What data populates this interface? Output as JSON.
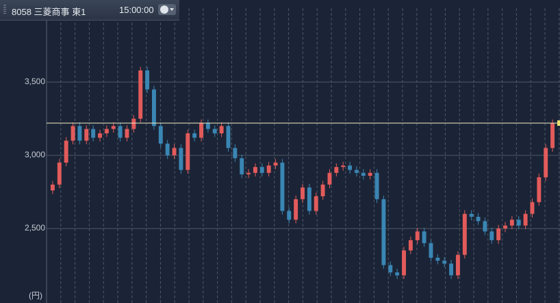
{
  "header": {
    "symbol": "8058 三菱商事 東1",
    "time": "15:00:00"
  },
  "chart_data": {
    "type": "candlestick",
    "unit_label": "(円)",
    "ylim": [
      1991,
      4061
    ],
    "yticks": [
      {
        "value": 2500,
        "label": "2,500"
      },
      {
        "value": 3000,
        "label": "3,000"
      },
      {
        "value": 3500,
        "label": "3,500"
      }
    ],
    "grid": true,
    "up_color": "#e25b5b",
    "down_color": "#3a86b4",
    "price_line": 3220,
    "price_line_color": "#f4f1c8",
    "open": [
      2760,
      2800,
      2950,
      3100,
      3200,
      3100,
      3180,
      3120,
      3150,
      3180,
      3200,
      3120,
      3180,
      3250,
      3580,
      3450,
      3200,
      3080,
      3000,
      3050,
      2900,
      3150,
      3120,
      3220,
      3180,
      3150,
      3200,
      3050,
      2980,
      2870,
      2880,
      2920,
      2880,
      2930,
      2950,
      2620,
      2560,
      2700,
      2780,
      2620,
      2720,
      2800,
      2880,
      2920,
      2930,
      2900,
      2880,
      2860,
      2880,
      2700,
      2250,
      2200,
      2180,
      2350,
      2420,
      2480,
      2400,
      2300,
      2280,
      2260,
      2180,
      2320,
      2600,
      2580,
      2550,
      2480,
      2420,
      2500,
      2520,
      2560,
      2520,
      2600,
      2680,
      2850,
      3050
    ],
    "high": [
      2825,
      2975,
      3125,
      3225,
      3225,
      3205,
      3205,
      3175,
      3205,
      3225,
      3225,
      3205,
      3275,
      3605,
      3605,
      3475,
      3225,
      3105,
      3075,
      3075,
      3175,
      3175,
      3245,
      3245,
      3205,
      3225,
      3225,
      3075,
      3005,
      2905,
      2945,
      2945,
      2955,
      2975,
      2975,
      2645,
      2725,
      2805,
      2805,
      2745,
      2825,
      2905,
      2945,
      2955,
      2955,
      2925,
      2905,
      2905,
      2905,
      2725,
      2275,
      2225,
      2375,
      2445,
      2505,
      2505,
      2425,
      2325,
      2305,
      2285,
      2345,
      2625,
      2625,
      2605,
      2575,
      2505,
      2525,
      2545,
      2585,
      2585,
      2625,
      2705,
      2875,
      3075,
      3245
    ],
    "low": [
      2735,
      2775,
      2925,
      3075,
      3075,
      3075,
      3095,
      3095,
      3125,
      3155,
      3095,
      3095,
      3155,
      3225,
      3425,
      3175,
      3055,
      2975,
      2975,
      2875,
      2875,
      3095,
      3095,
      3155,
      3125,
      3125,
      3025,
      2955,
      2845,
      2845,
      2855,
      2855,
      2855,
      2905,
      2595,
      2535,
      2535,
      2675,
      2595,
      2595,
      2695,
      2775,
      2855,
      2895,
      2875,
      2855,
      2835,
      2835,
      2675,
      2225,
      2175,
      2155,
      2155,
      2325,
      2395,
      2375,
      2275,
      2255,
      2235,
      2155,
      2155,
      2295,
      2555,
      2525,
      2455,
      2395,
      2395,
      2475,
      2495,
      2495,
      2495,
      2575,
      2655,
      2825,
      3025
    ],
    "close": [
      2800,
      2950,
      3100,
      3200,
      3100,
      3180,
      3120,
      3150,
      3180,
      3200,
      3120,
      3180,
      3250,
      3580,
      3450,
      3200,
      3080,
      3000,
      3050,
      2900,
      3150,
      3120,
      3220,
      3180,
      3150,
      3200,
      3050,
      2980,
      2870,
      2880,
      2920,
      2880,
      2930,
      2950,
      2620,
      2560,
      2700,
      2780,
      2620,
      2720,
      2800,
      2880,
      2920,
      2930,
      2900,
      2880,
      2860,
      2880,
      2700,
      2250,
      2200,
      2180,
      2350,
      2420,
      2480,
      2400,
      2300,
      2280,
      2260,
      2180,
      2320,
      2600,
      2580,
      2550,
      2480,
      2420,
      2500,
      2520,
      2560,
      2520,
      2600,
      2680,
      2850,
      3050,
      3220
    ]
  }
}
